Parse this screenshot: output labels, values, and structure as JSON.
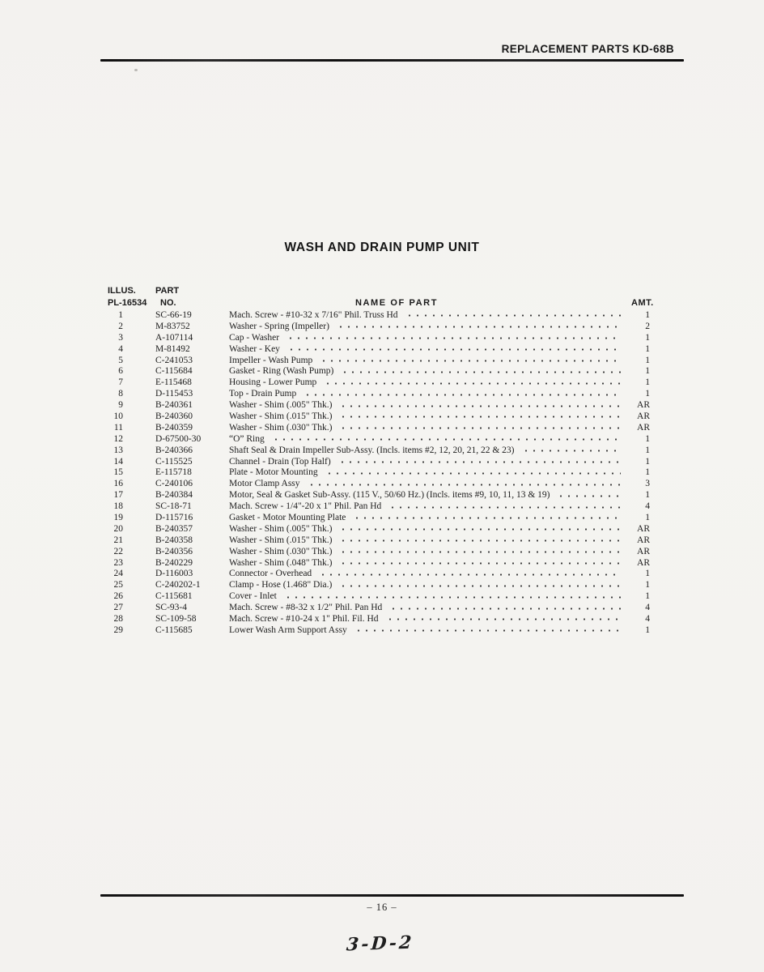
{
  "document": {
    "header": "REPLACEMENT PARTS KD-68B",
    "title": "WASH AND DRAIN PUMP UNIT",
    "columns": {
      "illus_label": "ILLUS.",
      "illus_plate": "PL-16534",
      "part_label": "PART",
      "part_no_label": "NO.",
      "name_label": "NAME OF PART",
      "amt_label": "AMT."
    },
    "page_number": "– 16 –",
    "handwritten_note": "3-D-2"
  },
  "parts": [
    {
      "illus": "1",
      "part_no": "SC-66-19",
      "name": "Mach. Screw - #10-32 x 7/16\" Phil. Truss Hd",
      "amt": "1"
    },
    {
      "illus": "2",
      "part_no": "M-83752",
      "name": "Washer - Spring (Impeller)",
      "amt": "2"
    },
    {
      "illus": "3",
      "part_no": "A-107114",
      "name": "Cap - Washer",
      "amt": "1"
    },
    {
      "illus": "4",
      "part_no": "M-81492",
      "name": "Washer - Key",
      "amt": "1"
    },
    {
      "illus": "5",
      "part_no": "C-241053",
      "name": "Impeller - Wash Pump",
      "amt": "1"
    },
    {
      "illus": "6",
      "part_no": "C-115684",
      "name": "Gasket - Ring (Wash Pump)",
      "amt": "1"
    },
    {
      "illus": "7",
      "part_no": "E-115468",
      "name": "Housing - Lower Pump",
      "amt": "1"
    },
    {
      "illus": "8",
      "part_no": "D-115453",
      "name": "Top - Drain Pump",
      "amt": "1"
    },
    {
      "illus": "9",
      "part_no": "B-240361",
      "name": "Washer - Shim (.005\" Thk.)",
      "amt": "AR"
    },
    {
      "illus": "10",
      "part_no": "B-240360",
      "name": "Washer - Shim (.015\" Thk.)",
      "amt": "AR"
    },
    {
      "illus": "11",
      "part_no": "B-240359",
      "name": "Washer - Shim (.030\" Thk.)",
      "amt": "AR"
    },
    {
      "illus": "12",
      "part_no": "D-67500-30",
      "name": "“O” Ring",
      "amt": "1"
    },
    {
      "illus": "13",
      "part_no": "B-240366",
      "name": "Shaft Seal & Drain Impeller Sub-Assy. (Incls. items #2, 12, 20, 21, 22 & 23)",
      "amt": "1"
    },
    {
      "illus": "14",
      "part_no": "C-115525",
      "name": "Channel - Drain (Top Half)",
      "amt": "1"
    },
    {
      "illus": "15",
      "part_no": "E-115718",
      "name": "Plate - Motor Mounting",
      "amt": "1"
    },
    {
      "illus": "16",
      "part_no": "C-240106",
      "name": "Motor Clamp Assy",
      "amt": "3"
    },
    {
      "illus": "17",
      "part_no": "B-240384",
      "name": "Motor, Seal & Gasket Sub-Assy. (115 V., 50/60 Hz.) (Incls. items #9, 10, 11, 13 & 19)",
      "amt": "1"
    },
    {
      "illus": "18",
      "part_no": "SC-18-71",
      "name": "Mach. Screw - 1/4\"-20 x 1\" Phil. Pan Hd",
      "amt": "4"
    },
    {
      "illus": "19",
      "part_no": "D-115716",
      "name": "Gasket - Motor Mounting Plate",
      "amt": "1"
    },
    {
      "illus": "20",
      "part_no": "B-240357",
      "name": "Washer - Shim (.005\" Thk.)",
      "amt": "AR"
    },
    {
      "illus": "21",
      "part_no": "B-240358",
      "name": "Washer - Shim (.015\" Thk.)",
      "amt": "AR"
    },
    {
      "illus": "22",
      "part_no": "B-240356",
      "name": "Washer - Shim (.030\" Thk.)",
      "amt": "AR"
    },
    {
      "illus": "23",
      "part_no": "B-240229",
      "name": "Washer - Shim (.048\" Thk.)",
      "amt": "AR"
    },
    {
      "illus": "24",
      "part_no": "D-116003",
      "name": "Connector - Overhead",
      "amt": "1"
    },
    {
      "illus": "25",
      "part_no": "C-240202-1",
      "name": "Clamp - Hose (1.468\" Dia.)",
      "amt": "1"
    },
    {
      "illus": "26",
      "part_no": "C-115681",
      "name": "Cover - Inlet",
      "amt": "1"
    },
    {
      "illus": "27",
      "part_no": "SC-93-4",
      "name": "Mach. Screw - #8-32 x 1/2\" Phil. Pan Hd",
      "amt": "4"
    },
    {
      "illus": "28",
      "part_no": "SC-109-58",
      "name": "Mach. Screw - #10-24 x 1\" Phil. Fil. Hd",
      "amt": "4"
    },
    {
      "illus": "29",
      "part_no": "C-115685",
      "name": "Lower Wash Arm Support Assy",
      "amt": "1"
    }
  ]
}
